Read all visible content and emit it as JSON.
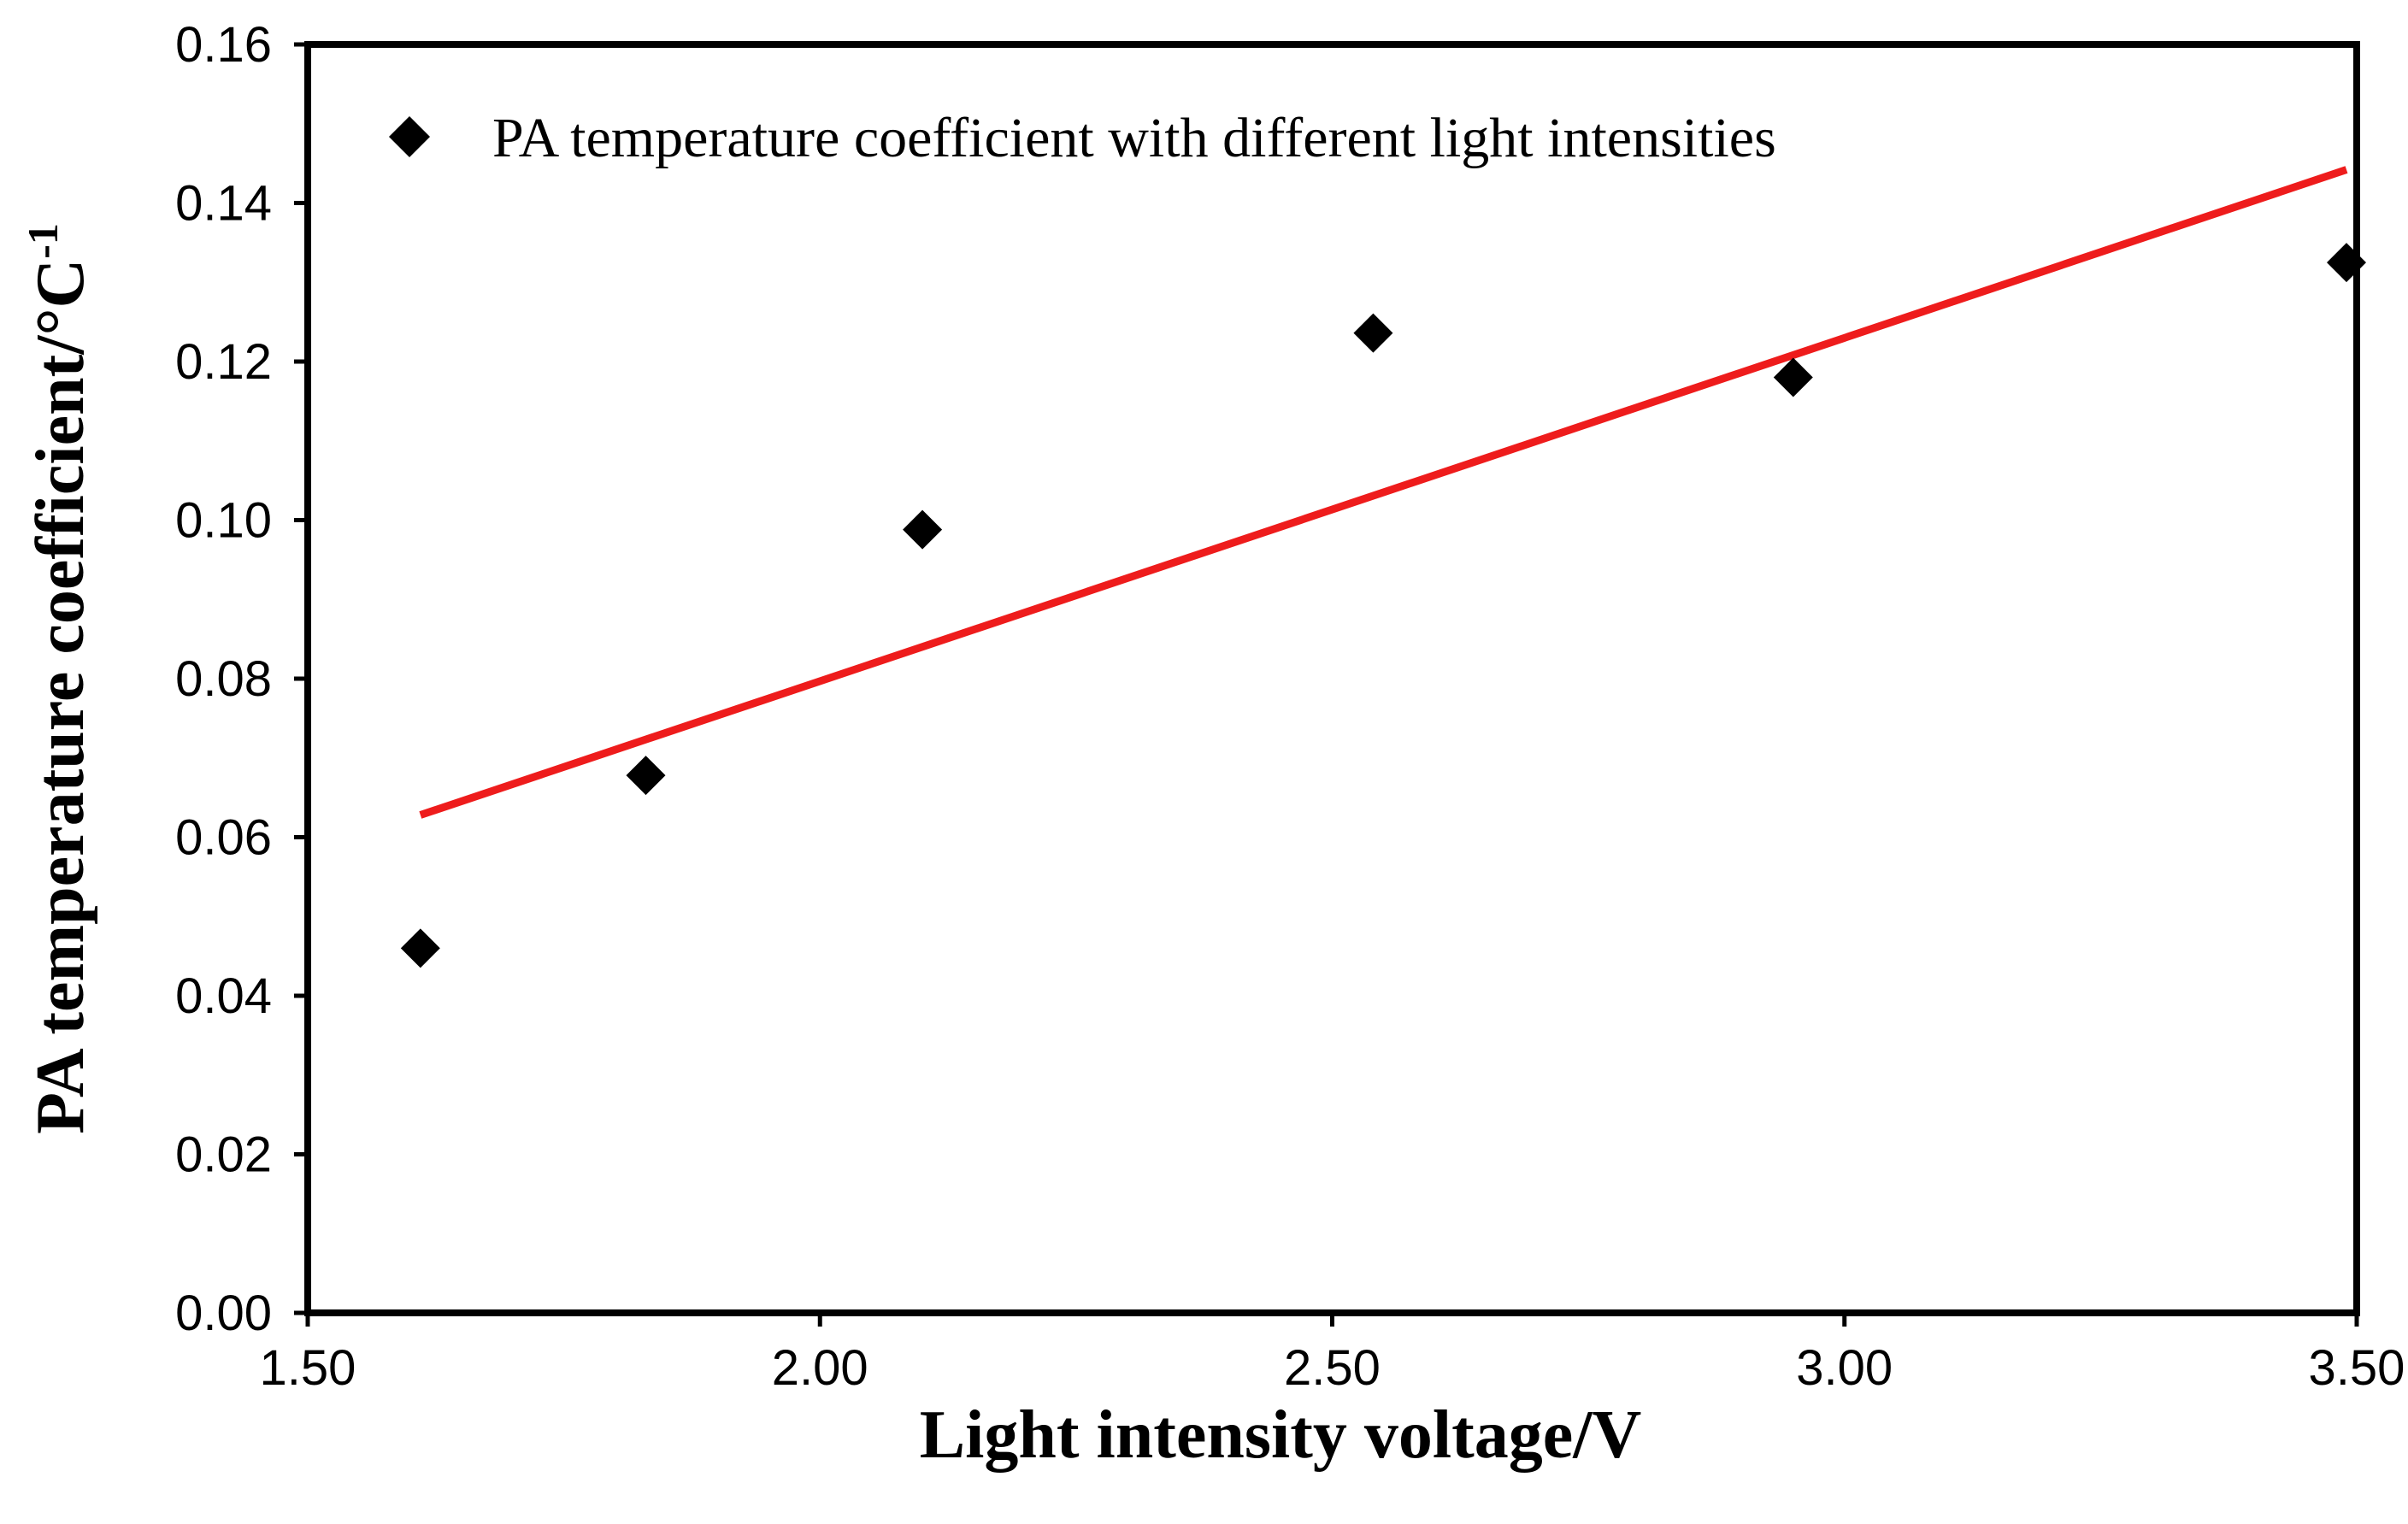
{
  "chart_data": {
    "type": "scatter",
    "title": "",
    "xlabel": "Light intensity voltage/V",
    "ylabel_main": "PA temperature coefficient/°C",
    "ylabel_superscript": "-1",
    "xlim": [
      1.5,
      3.5
    ],
    "ylim": [
      0.0,
      0.16
    ],
    "x_ticks": [
      "1.50",
      "2.00",
      "2.50",
      "3.00",
      "3.50"
    ],
    "y_ticks": [
      "0.00",
      "0.02",
      "0.04",
      "0.06",
      "0.08",
      "0.10",
      "0.12",
      "0.14",
      "0.16"
    ],
    "grid": false,
    "legend_position": "top-left",
    "series": [
      {
        "name": "PA temperature coefficient with different light intensities",
        "marker": "diamond",
        "color": "#000000",
        "points": [
          {
            "x": 1.61,
            "y": 0.046
          },
          {
            "x": 1.83,
            "y": 0.0678
          },
          {
            "x": 2.1,
            "y": 0.0988
          },
          {
            "x": 2.54,
            "y": 0.1236
          },
          {
            "x": 2.95,
            "y": 0.118
          },
          {
            "x": 3.49,
            "y": 0.1325
          }
        ]
      }
    ],
    "trendline": {
      "type": "linear",
      "color": "#ee1c1c",
      "x_range": [
        1.61,
        3.49
      ],
      "y_range": [
        0.0628,
        0.1442
      ]
    }
  }
}
